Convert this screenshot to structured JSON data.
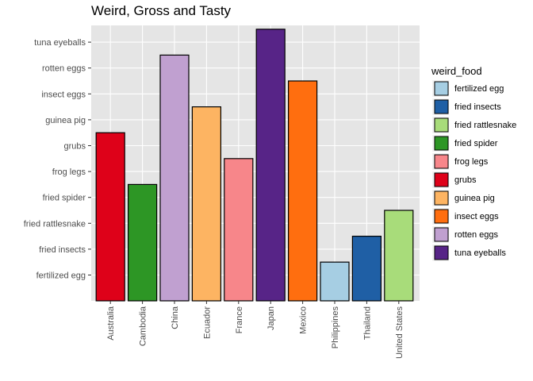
{
  "chart_data": {
    "type": "bar",
    "title": "Weird, Gross and Tasty",
    "xlabel": "",
    "ylabel": "",
    "categories": [
      "Australia",
      "Cambodia",
      "China",
      "Ecuador",
      "France",
      "Japan",
      "Mexico",
      "Philippines",
      "Thailand",
      "United States"
    ],
    "y_levels": [
      "fertilized egg",
      "fried insects",
      "fried rattlesnake",
      "fried spider",
      "frog legs",
      "grubs",
      "guinea pig",
      "insect eggs",
      "rotten eggs",
      "tuna eyeballs"
    ],
    "values": [
      "grubs",
      "fried spider",
      "rotten eggs",
      "guinea pig",
      "frog legs",
      "tuna eyeballs",
      "insect eggs",
      "fertilized egg",
      "fried insects",
      "fried rattlesnake"
    ],
    "fill_variable": "weird_food",
    "legend": {
      "title": "weird_food",
      "placement": "right",
      "entries": [
        {
          "label": "fertilized egg",
          "color": "#A6CEE3"
        },
        {
          "label": "fried insects",
          "color": "#1F5FA5"
        },
        {
          "label": "fried rattlesnake",
          "color": "#A8DC7A"
        },
        {
          "label": "fried spider",
          "color": "#2D9625"
        },
        {
          "label": "frog legs",
          "color": "#F7868A"
        },
        {
          "label": "grubs",
          "color": "#DE0119"
        },
        {
          "label": "guinea pig",
          "color": "#FDB462"
        },
        {
          "label": "insect eggs",
          "color": "#FF6E0F"
        },
        {
          "label": "rotten eggs",
          "color": "#C0A0D0"
        },
        {
          "label": "tuna eyeballs",
          "color": "#572487"
        }
      ]
    },
    "grid": true,
    "panel_background": "#E5E5E5"
  }
}
